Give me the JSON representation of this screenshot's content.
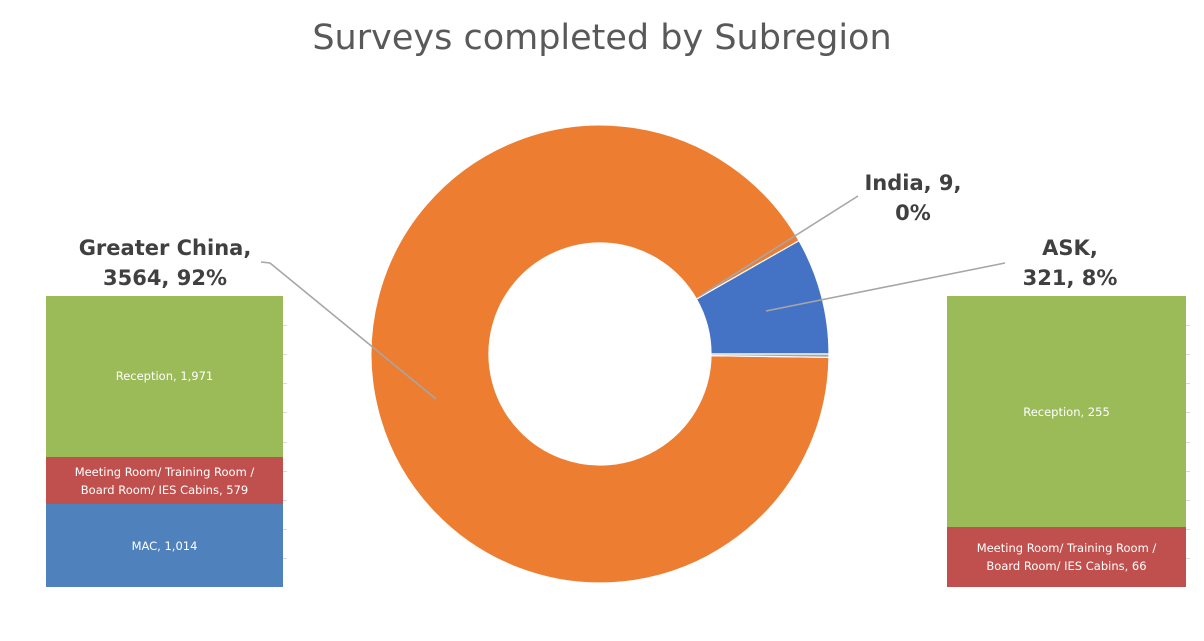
{
  "title": "Surveys completed by Subregion",
  "chart_data": [
    {
      "type": "pie",
      "variant": "doughnut",
      "title": "Surveys completed by Subregion",
      "slices": [
        {
          "label": "ASK",
          "value": 321,
          "percent": "8%",
          "color": "#4472C4"
        },
        {
          "label": "Greater China",
          "value": 3564,
          "percent": "92%",
          "color": "#ED7D31"
        },
        {
          "label": "India",
          "value": 9,
          "percent": "0%",
          "color": "#A5A5A5"
        }
      ]
    },
    {
      "type": "bar",
      "variant": "stacked-column",
      "group": "Greater China",
      "segments": [
        {
          "label": "MAC",
          "value": 1014,
          "display": "1,014",
          "color": "#4F81BD"
        },
        {
          "label": "Meeting Room/ Training Room / Board Room/ IES Cabins",
          "value": 579,
          "display": "579",
          "color": "#C0504D"
        },
        {
          "label": "Reception",
          "value": 1971,
          "display": "1,971",
          "color": "#9BBB59"
        }
      ]
    },
    {
      "type": "bar",
      "variant": "stacked-column",
      "group": "ASK",
      "segments": [
        {
          "label": "Meeting Room/ Training Room / Board Room/ IES Cabins",
          "value": 66,
          "display": "66",
          "color": "#C0504D"
        },
        {
          "label": "Reception",
          "value": 255,
          "display": "255",
          "color": "#9BBB59"
        }
      ]
    }
  ],
  "callouts": {
    "india": [
      "India, 9,",
      "0%"
    ],
    "ask": [
      "ASK,",
      "321, 8%"
    ],
    "greater_china": [
      "Greater China,",
      "3564, 92%"
    ]
  }
}
